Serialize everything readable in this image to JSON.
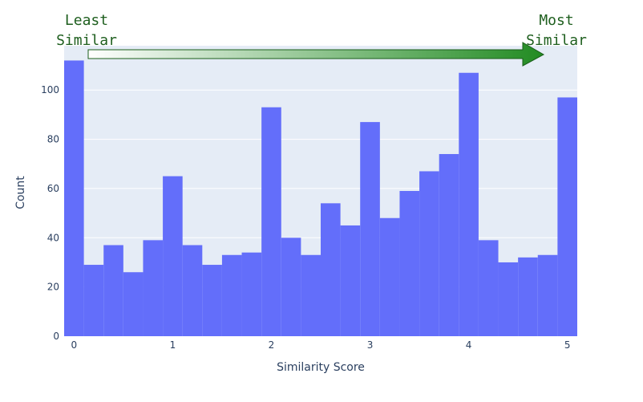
{
  "chart_data": {
    "type": "bar",
    "title": "",
    "xlabel": "Similarity Score",
    "ylabel": "Count",
    "xlim": [
      -0.1,
      5.1
    ],
    "ylim": [
      0,
      118
    ],
    "bin_width": 0.2,
    "x_ticks": [
      0,
      1,
      2,
      3,
      4,
      5
    ],
    "y_ticks": [
      0,
      20,
      40,
      60,
      80,
      100
    ],
    "bins": [
      {
        "x0": -0.1,
        "x1": 0.1,
        "count": 112
      },
      {
        "x0": 0.1,
        "x1": 0.3,
        "count": 29
      },
      {
        "x0": 0.3,
        "x1": 0.5,
        "count": 37
      },
      {
        "x0": 0.5,
        "x1": 0.7,
        "count": 26
      },
      {
        "x0": 0.7,
        "x1": 0.9,
        "count": 39
      },
      {
        "x0": 0.9,
        "x1": 1.1,
        "count": 65
      },
      {
        "x0": 1.1,
        "x1": 1.3,
        "count": 37
      },
      {
        "x0": 1.3,
        "x1": 1.5,
        "count": 29
      },
      {
        "x0": 1.5,
        "x1": 1.7,
        "count": 33
      },
      {
        "x0": 1.7,
        "x1": 1.9,
        "count": 34
      },
      {
        "x0": 1.9,
        "x1": 2.1,
        "count": 93
      },
      {
        "x0": 2.1,
        "x1": 2.3,
        "count": 40
      },
      {
        "x0": 2.3,
        "x1": 2.5,
        "count": 33
      },
      {
        "x0": 2.5,
        "x1": 2.7,
        "count": 54
      },
      {
        "x0": 2.7,
        "x1": 2.9,
        "count": 45
      },
      {
        "x0": 2.9,
        "x1": 3.1,
        "count": 87
      },
      {
        "x0": 3.1,
        "x1": 3.3,
        "count": 48
      },
      {
        "x0": 3.3,
        "x1": 3.5,
        "count": 59
      },
      {
        "x0": 3.5,
        "x1": 3.7,
        "count": 67
      },
      {
        "x0": 3.7,
        "x1": 3.9,
        "count": 74
      },
      {
        "x0": 3.9,
        "x1": 4.1,
        "count": 107
      },
      {
        "x0": 4.1,
        "x1": 4.3,
        "count": 39
      },
      {
        "x0": 4.3,
        "x1": 4.5,
        "count": 30
      },
      {
        "x0": 4.5,
        "x1": 4.7,
        "count": 32
      },
      {
        "x0": 4.7,
        "x1": 4.9,
        "count": 33
      },
      {
        "x0": 4.9,
        "x1": 5.1,
        "count": 97
      }
    ],
    "grid": true,
    "colors": {
      "bar": "#636efa",
      "plot_bg": "#e5ecf6",
      "grid": "#ffffff",
      "text": "#2a3f5f",
      "annotation_text": "#1f5f1f",
      "arrow_start": "#ffffff",
      "arrow_end": "#228b22",
      "arrow_edge": "#1a5e1a"
    },
    "annotations": {
      "left_line1": "Least",
      "left_line2": "Similar",
      "right_line1": "Most",
      "right_line2": "Similar"
    }
  }
}
